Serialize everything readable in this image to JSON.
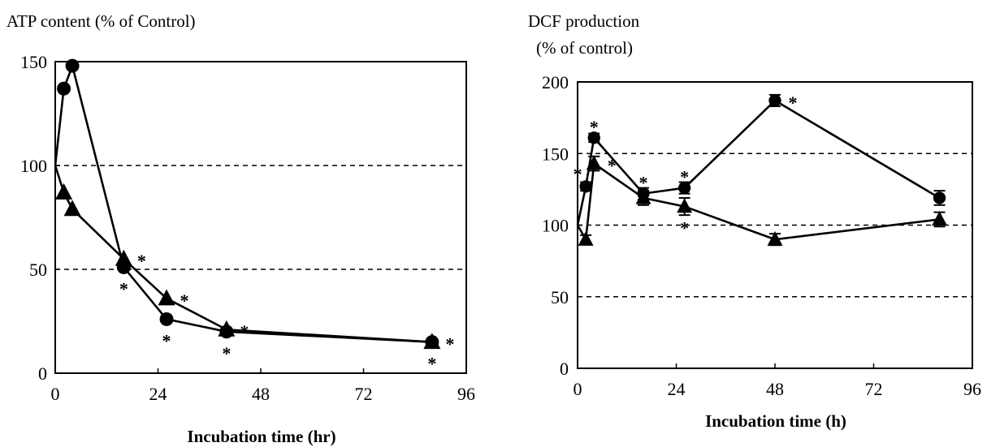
{
  "chart_data": [
    {
      "type": "line",
      "title": "ATP content (% of Control)",
      "xlabel": "Incubation time (hr)",
      "ylabel": "",
      "xlim": [
        0,
        96
      ],
      "ylim": [
        0,
        150
      ],
      "xticks": [
        "0",
        "24",
        "48",
        "72",
        "96"
      ],
      "yticks": [
        "0",
        "50",
        "100",
        "150"
      ],
      "reference_lines": [
        50,
        100
      ],
      "series": [
        {
          "marker": "circle",
          "x": [
            0,
            2,
            4,
            16,
            26,
            40,
            88
          ],
          "y": [
            100,
            137,
            148,
            51,
            26,
            20,
            15
          ],
          "significant": [
            false,
            false,
            false,
            true,
            true,
            true,
            true
          ],
          "star_side": [
            "",
            "",
            "",
            "below",
            "below",
            "below",
            "below"
          ]
        },
        {
          "marker": "triangle",
          "x": [
            0,
            2,
            4,
            16,
            26,
            40,
            88
          ],
          "y": [
            100,
            87,
            79,
            55,
            36,
            21,
            15
          ],
          "significant": [
            false,
            false,
            false,
            true,
            true,
            true,
            true
          ],
          "star_side": [
            "",
            "",
            "",
            "right",
            "right",
            "right",
            "right"
          ]
        }
      ]
    },
    {
      "type": "line",
      "title": "DCF production",
      "subtitle": "(% of control)",
      "xlabel": "Incubation time (h)",
      "ylabel": "",
      "xlim": [
        0,
        96
      ],
      "ylim": [
        0,
        200
      ],
      "xticks": [
        "0",
        "24",
        "48",
        "72",
        "96"
      ],
      "yticks": [
        "0",
        "50",
        "100",
        "150",
        "200"
      ],
      "reference_lines": [
        50,
        100,
        150
      ],
      "series": [
        {
          "marker": "circle",
          "x": [
            0,
            2,
            4,
            16,
            26,
            48,
            88
          ],
          "y": [
            100,
            127,
            161,
            122,
            126,
            187,
            119
          ],
          "err": [
            0,
            3,
            3,
            4,
            4,
            4,
            5
          ],
          "significant": [
            false,
            true,
            true,
            true,
            true,
            true,
            false
          ],
          "star_side": [
            "",
            "left",
            "above",
            "above",
            "above",
            "right",
            ""
          ]
        },
        {
          "marker": "triangle",
          "x": [
            0,
            2,
            4,
            16,
            26,
            48,
            88
          ],
          "y": [
            100,
            90,
            143,
            119,
            113,
            90,
            104
          ],
          "err": [
            0,
            3,
            5,
            5,
            6,
            4,
            5
          ],
          "significant": [
            false,
            false,
            true,
            false,
            true,
            false,
            false
          ],
          "star_side": [
            "",
            "",
            "right",
            "",
            "below",
            "",
            ""
          ]
        }
      ]
    }
  ]
}
